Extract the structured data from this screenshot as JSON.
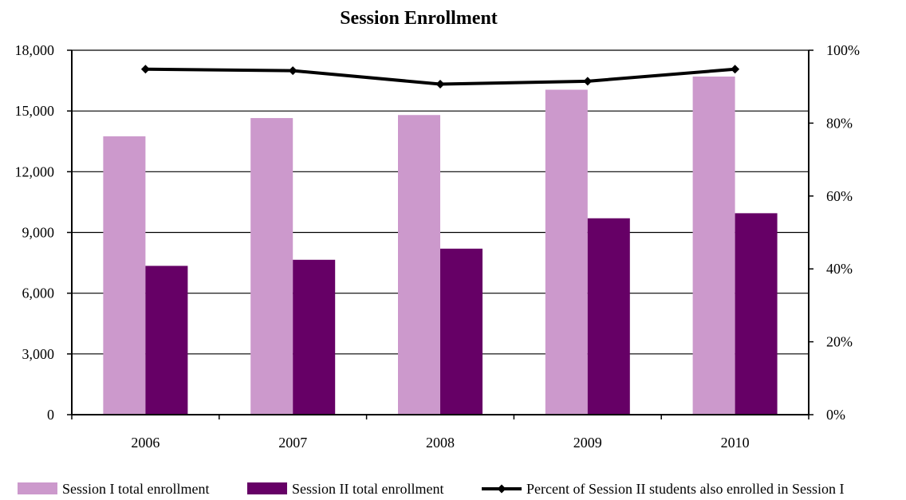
{
  "chart_data": {
    "type": "bar",
    "title": "Session Enrollment",
    "categories": [
      "2006",
      "2007",
      "2008",
      "2009",
      "2010"
    ],
    "series": [
      {
        "name": "Session I total enrollment",
        "type": "bar",
        "axis": "left",
        "color": "#CC99CC",
        "values": [
          13750,
          14650,
          14800,
          16050,
          16700
        ]
      },
      {
        "name": "Session II total enrollment",
        "type": "bar",
        "axis": "left",
        "color": "#660066",
        "values": [
          7350,
          7650,
          8200,
          9700,
          9950
        ]
      },
      {
        "name": "Percent of Session II students also enrolled in Session I",
        "type": "line",
        "axis": "right",
        "color": "#000000",
        "values": [
          0.948,
          0.944,
          0.907,
          0.915,
          0.948
        ]
      }
    ],
    "y_left": {
      "min": 0,
      "max": 18000,
      "ticks": [
        "0",
        "3,000",
        "6,000",
        "9,000",
        "12,000",
        "15,000",
        "18,000"
      ]
    },
    "y_right": {
      "min": 0,
      "max": 1,
      "ticks": [
        "0%",
        "20%",
        "40%",
        "60%",
        "80%",
        "100%"
      ]
    },
    "grid": true,
    "legend_position": "bottom"
  }
}
